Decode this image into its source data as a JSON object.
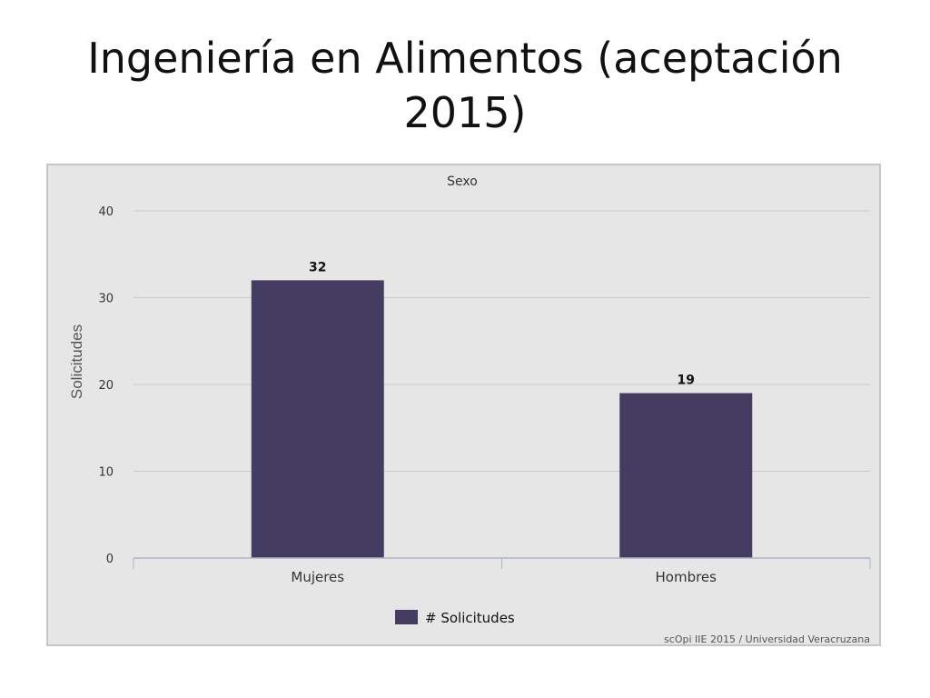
{
  "slide": {
    "title": "Ingeniería en Alimentos (aceptación 2015)"
  },
  "chart_data": {
    "type": "bar",
    "title": "Sexo",
    "ylabel": "Solicitudes",
    "xlabel": "",
    "categories": [
      "Mujeres",
      "Hombres"
    ],
    "series": [
      {
        "name": "# Solicitudes",
        "values": [
          32,
          19
        ],
        "color": "#453c62"
      }
    ],
    "ylim": [
      0,
      40
    ],
    "yticks": [
      0,
      10,
      20,
      30,
      40
    ],
    "grid": true,
    "legend": "bottom-center",
    "credit": "scOpi IIE 2015 / Universidad Veracruzana"
  }
}
